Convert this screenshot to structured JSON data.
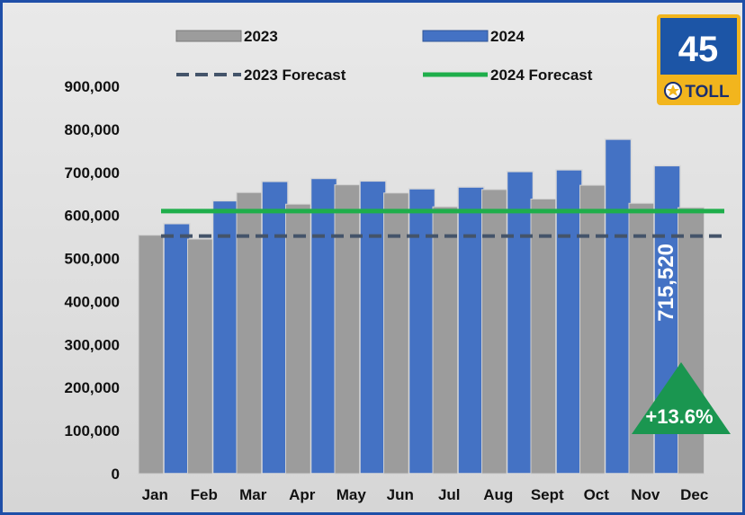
{
  "chart_data": {
    "type": "bar",
    "categories": [
      "Jan",
      "Feb",
      "Mar",
      "Apr",
      "May",
      "Jun",
      "Jul",
      "Aug",
      "Sept",
      "Oct",
      "Nov",
      "Dec"
    ],
    "series": [
      {
        "name": "2023",
        "color": "#9c9c9c",
        "values": [
          554000,
          545000,
          653000,
          626000,
          671000,
          652000,
          620000,
          660000,
          638000,
          670000,
          628000,
          618000
        ]
      },
      {
        "name": "2024",
        "color": "#4472c4",
        "values": [
          581000,
          634000,
          679000,
          686000,
          680000,
          662000,
          666000,
          702000,
          706000,
          777000,
          715520,
          null
        ]
      }
    ],
    "forecasts": [
      {
        "name": "2023 Forecast",
        "value": 552000,
        "style": "dashed",
        "color": "#44546a"
      },
      {
        "name": "2024 Forecast",
        "value": 610000,
        "style": "solid",
        "color": "#1fae4b"
      }
    ],
    "ylim": [
      0,
      900000
    ],
    "yticks": [
      0,
      100000,
      200000,
      300000,
      400000,
      500000,
      600000,
      700000,
      800000,
      900000
    ],
    "ytick_labels": [
      "0",
      "100,000",
      "200,000",
      "300,000",
      "400,000",
      "500,000",
      "600,000",
      "700,000",
      "800,000",
      "900,000"
    ],
    "grid": false,
    "legend_placement": "top",
    "annotations": {
      "value_label": {
        "text": "715,520",
        "category": "Nov"
      },
      "change": {
        "text": "+13.6%",
        "color": "#1a9650"
      }
    }
  },
  "badge": {
    "route_number": "45",
    "toll_text": "TOLL",
    "route_color": "#1c55a6",
    "toll_color": "#f2b51d"
  },
  "colors": {
    "frame": "#1f4fa8",
    "plot_background": "#dedede"
  }
}
